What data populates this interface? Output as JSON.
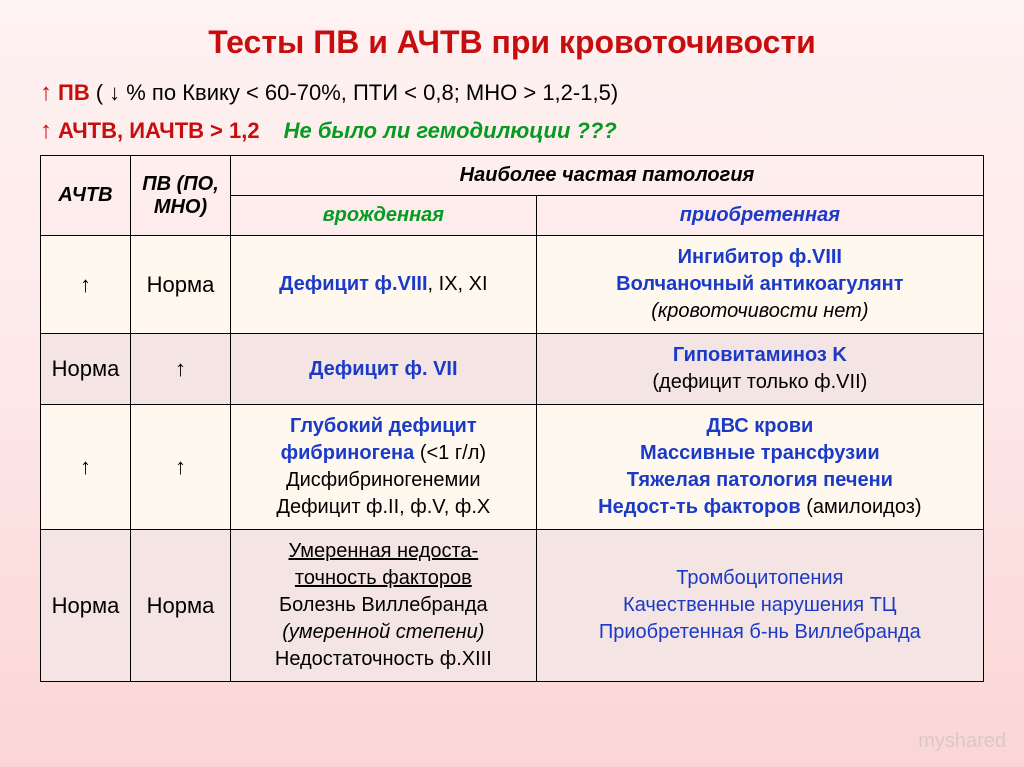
{
  "title": "Тесты ПВ и АЧТВ при кровоточивости",
  "criteria": {
    "pv": {
      "arrow": "↑",
      "name": "ПВ",
      "cond": "( ↓ % по Квику < 60-70%,  ПТИ < 0,8;   МНО > 1,2-1,5)"
    },
    "achtv": {
      "arrow": "↑",
      "name": "АЧТВ,   ИАЧТВ",
      "cond": "> 1,2",
      "question": "Не было ли гемодилюции ???"
    }
  },
  "headers": {
    "achtv": "АЧТВ",
    "pv": "ПВ (ПО, МНО)",
    "pathology": "Наиболее частая патология",
    "congenital": "врожденная",
    "acquired": "приобретенная"
  },
  "rows": [
    {
      "achtv": "↑",
      "pv": "Норма",
      "congenital_html": "<span class='blue'>Дефицит ф.VIII</span><span class='black'>, IX, XI</span>",
      "acquired_html": "<span class='line blue'>Ингибитор ф.VIII</span><span class='line blue'>Волчаночный антикоагулянт</span><span class='line black italic'>(кровоточивости нет)</span>"
    },
    {
      "achtv": "Норма",
      "pv": "↑",
      "congenital_html": "<span class='blue'>Дефицит ф. VII</span>",
      "acquired_html": "<span class='line blue'>Гиповитаминоз K</span><span class='line black'>(дефицит только ф.VII)</span>"
    },
    {
      "achtv": "↑",
      "pv": "↑",
      "congenital_html": "<span class='line blue'>Глубокий дефицит</span><span class='line'><span class='blue'>фибриногена</span> <span class='black'>(&lt;1 г/л)</span></span><span class='line black'>Дисфибриногенемии</span><span class='line black'>Дефицит ф.II, ф.V, ф.X</span>",
      "acquired_html": "<span class='line blue'>ДВС крови</span><span class='line blue'>Массивные трансфузии</span><span class='line blue'>Тяжелая патология печени</span><span class='line'><span class='blue'>Недост-ть факторов</span> <span class='black'>(амилоидоз)</span></span>"
    },
    {
      "achtv": "Норма",
      "pv": "Норма",
      "congenital_html": "<span class='line black underline'>Умеренная недоста-</span><span class='line black underline'>точность факторов</span><span class='line black'>Болезнь Виллебранда</span><span class='line black italic'>(умеренной степени)</span><span class='line black'>Недостаточность ф.XIII</span>",
      "acquired_html": "<span class='line blue-plain'>Тромбоцитопения</span><span class='line blue-plain'>Качественные нарушения ТЦ</span><span class='line blue-plain'>Приобретенная б-нь Виллебранда</span>"
    }
  ],
  "watermark": "myshared"
}
